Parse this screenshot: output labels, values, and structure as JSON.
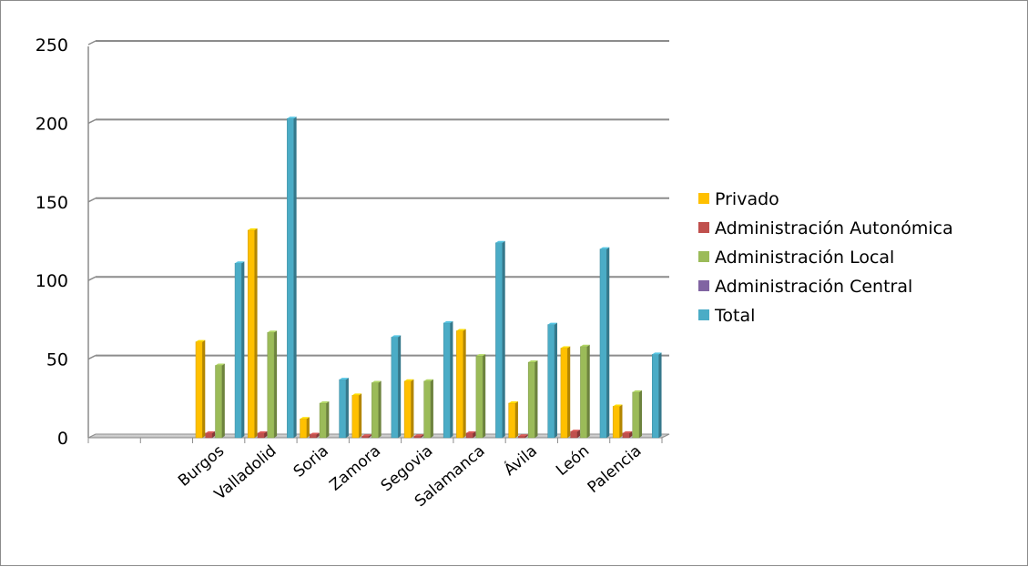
{
  "chart_data": {
    "type": "bar",
    "categories": [
      "",
      "",
      "Burgos",
      "Valladolid",
      "Soria",
      "Zamora",
      "Segovia",
      "Salamanca",
      "Ávila",
      "León",
      "Palencia"
    ],
    "series": [
      {
        "name": "Privado",
        "color": "#FFC000",
        "values": [
          0,
          0,
          61,
          132,
          12,
          27,
          36,
          68,
          22,
          57,
          20
        ]
      },
      {
        "name": "Administración Autonómica",
        "color": "#C0504D",
        "values": [
          0,
          0,
          3,
          3,
          2,
          1,
          1,
          3,
          1,
          4,
          3
        ]
      },
      {
        "name": "Administración Local",
        "color": "#9BBB59",
        "values": [
          0,
          0,
          46,
          67,
          22,
          35,
          36,
          52,
          48,
          58,
          29
        ]
      },
      {
        "name": "Administración Central",
        "color": "#8064A2",
        "values": [
          0,
          0,
          0,
          0,
          0,
          0,
          0,
          0,
          0,
          0,
          0
        ]
      },
      {
        "name": "Total",
        "color": "#4BACC6",
        "values": [
          0,
          0,
          111,
          203,
          37,
          64,
          73,
          124,
          72,
          120,
          53
        ]
      }
    ],
    "y_ticks": [
      "0",
      "50",
      "100",
      "150",
      "200",
      "250"
    ],
    "ylim": [
      0,
      250
    ],
    "grid": true,
    "legend_position": "right"
  }
}
